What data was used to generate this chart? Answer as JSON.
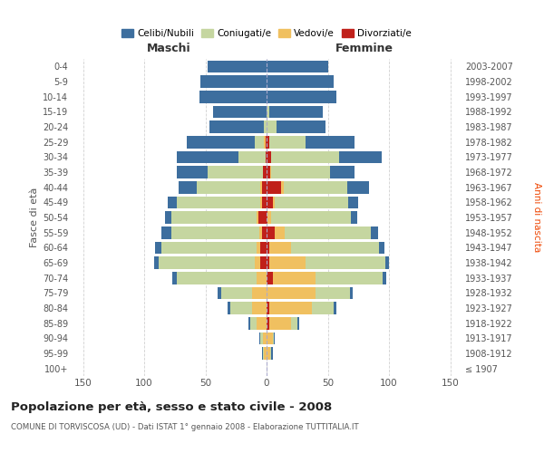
{
  "age_groups": [
    "100+",
    "95-99",
    "90-94",
    "85-89",
    "80-84",
    "75-79",
    "70-74",
    "65-69",
    "60-64",
    "55-59",
    "50-54",
    "45-49",
    "40-44",
    "35-39",
    "30-34",
    "25-29",
    "20-24",
    "15-19",
    "10-14",
    "5-9",
    "0-4"
  ],
  "birth_years": [
    "≤ 1907",
    "1908-1912",
    "1913-1917",
    "1918-1922",
    "1923-1927",
    "1928-1932",
    "1933-1937",
    "1938-1942",
    "1943-1947",
    "1948-1952",
    "1953-1957",
    "1958-1962",
    "1963-1967",
    "1968-1972",
    "1973-1977",
    "1978-1982",
    "1983-1987",
    "1988-1992",
    "1993-1997",
    "1998-2002",
    "2003-2007"
  ],
  "males": {
    "celibi": [
      0,
      1,
      1,
      2,
      2,
      3,
      4,
      4,
      5,
      8,
      5,
      8,
      15,
      25,
      50,
      55,
      45,
      44,
      55,
      54,
      48
    ],
    "coniugati": [
      0,
      1,
      2,
      5,
      18,
      25,
      65,
      78,
      78,
      72,
      70,
      68,
      52,
      45,
      22,
      8,
      2,
      0,
      0,
      0,
      0
    ],
    "vedovi": [
      0,
      2,
      3,
      8,
      12,
      12,
      8,
      5,
      3,
      2,
      1,
      1,
      1,
      0,
      0,
      1,
      0,
      0,
      0,
      0,
      0
    ],
    "divorziati": [
      0,
      0,
      0,
      0,
      0,
      0,
      0,
      5,
      5,
      4,
      7,
      4,
      4,
      3,
      1,
      1,
      0,
      0,
      0,
      0,
      0
    ]
  },
  "females": {
    "nubili": [
      0,
      1,
      1,
      2,
      2,
      2,
      3,
      3,
      4,
      6,
      5,
      8,
      18,
      20,
      35,
      40,
      40,
      44,
      57,
      55,
      50
    ],
    "coniugate": [
      0,
      1,
      1,
      5,
      18,
      28,
      55,
      65,
      72,
      70,
      65,
      60,
      52,
      48,
      55,
      30,
      8,
      2,
      0,
      0,
      0
    ],
    "vedove": [
      0,
      3,
      5,
      18,
      35,
      40,
      35,
      30,
      18,
      8,
      3,
      2,
      2,
      1,
      0,
      0,
      0,
      0,
      0,
      0,
      0
    ],
    "divorziate": [
      0,
      0,
      0,
      2,
      2,
      0,
      5,
      2,
      2,
      7,
      1,
      5,
      12,
      3,
      4,
      2,
      0,
      0,
      0,
      0,
      0
    ]
  },
  "colors": {
    "celibi": "#3d6e9e",
    "coniugati": "#c5d6a0",
    "vedovi": "#f0c060",
    "divorziati": "#c0201a"
  },
  "title": "Popolazione per età, sesso e stato civile - 2008",
  "subtitle": "COMUNE DI TORVISCOSA (UD) - Dati ISTAT 1° gennaio 2008 - Elaborazione TUTTITALIA.IT",
  "xlabel_left": "Maschi",
  "xlabel_right": "Femmine",
  "ylabel_left": "Fasce di età",
  "ylabel_right": "Anni di nascita",
  "xlim": 160,
  "legend_labels": [
    "Celibi/Nubili",
    "Coniugati/e",
    "Vedovi/e",
    "Divorziati/e"
  ],
  "background_color": "#ffffff",
  "grid_color": "#cccccc"
}
